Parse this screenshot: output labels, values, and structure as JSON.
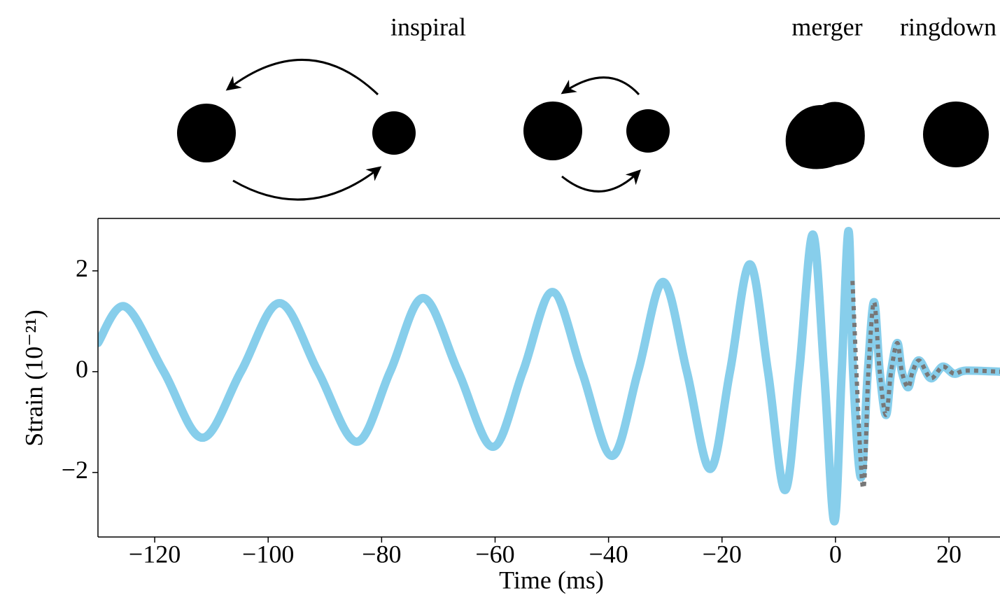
{
  "chart_data": {
    "type": "line",
    "annotations": [
      "inspiral",
      "merger",
      "ringdown"
    ],
    "xlabel": "Time (ms)",
    "ylabel": "Strain (10⁻²¹)",
    "xlim": [
      -130,
      29
    ],
    "ylim": [
      -3.28,
      3.04
    ],
    "xticks": [
      {
        "value": -120,
        "label": "−120"
      },
      {
        "value": -100,
        "label": "−100"
      },
      {
        "value": -80,
        "label": "−80"
      },
      {
        "value": -60,
        "label": "−60"
      },
      {
        "value": -40,
        "label": "−40"
      },
      {
        "value": -20,
        "label": "−20"
      },
      0,
      20
    ],
    "yticks": [
      {
        "value": -2,
        "label": "−2"
      },
      0,
      2
    ],
    "grid": false,
    "series": [
      {
        "color": "#87ceeb",
        "style": "solid",
        "x": [
          -130,
          -125.2,
          -118.4,
          -111.6,
          -104.8,
          -98.0,
          -91.2,
          -84.4,
          -78.5,
          -72.7,
          -66.5,
          -60.4,
          -55.1,
          -49.9,
          -44.7,
          -39.4,
          -34.8,
          -30.4,
          -26.2,
          -22.1,
          -18.6,
          -15.1,
          -11.9,
          -8.9,
          -6.4,
          -4.0,
          -2.0,
          -0.2,
          1.1,
          2.3,
          3.1,
          4.5,
          5.7,
          6.8,
          7.8,
          8.9,
          9.8,
          10.9,
          11.7,
          12.8,
          13.6,
          14.8,
          16.8,
          18.9,
          20.9,
          23.0,
          29
        ],
        "values": [
          0.57,
          1.29,
          0,
          -1.31,
          0,
          1.36,
          0,
          -1.39,
          0,
          1.46,
          0,
          -1.49,
          0,
          1.58,
          0,
          -1.67,
          0,
          1.78,
          0,
          -1.93,
          0,
          2.13,
          0,
          -2.35,
          0,
          2.72,
          0,
          -2.97,
          0,
          2.79,
          0,
          -2.1,
          0,
          1.38,
          0,
          -0.86,
          0,
          0.57,
          0,
          -0.31,
          0,
          0.22,
          -0.13,
          0.1,
          -0.04,
          0.02,
          0
        ]
      },
      {
        "color": "#777777",
        "style": "dotted",
        "x": [
          3.0,
          4.8,
          5.8,
          6.8,
          7.8,
          8.9,
          9.8,
          10.9,
          11.7,
          12.8,
          13.6,
          14.8,
          16.8,
          18.9,
          20.9,
          23.0,
          29
        ],
        "values": [
          1.8,
          -2.28,
          0,
          1.38,
          0,
          -0.86,
          0,
          0.57,
          0,
          -0.31,
          0,
          0.22,
          -0.13,
          0.1,
          -0.04,
          0.02,
          0
        ]
      }
    ]
  }
}
